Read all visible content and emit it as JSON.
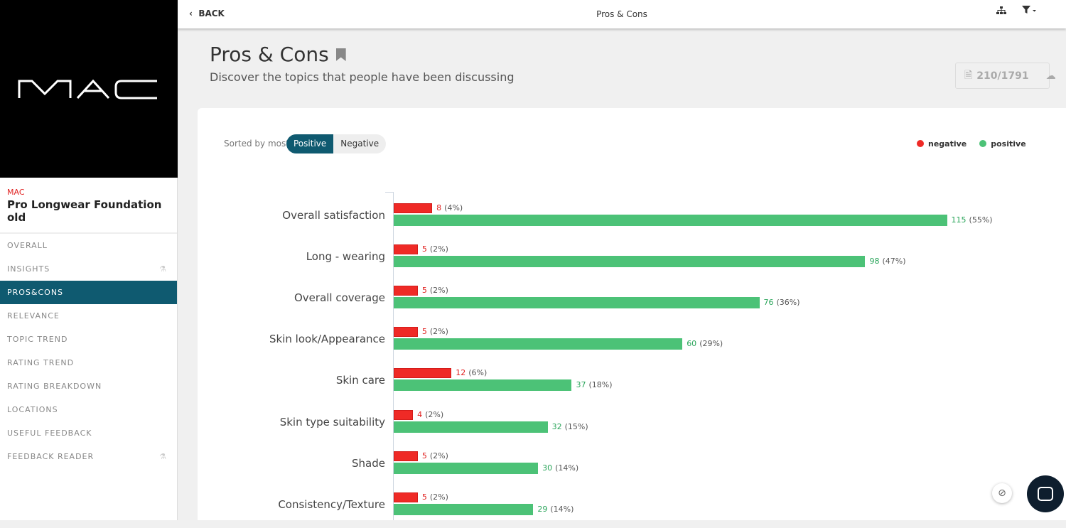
{
  "brand": {
    "logo_text": "MAC",
    "brand_name": "MAC",
    "product": "Pro Longwear Foundation old"
  },
  "sidebar": {
    "items": [
      {
        "label": "OVERALL",
        "active": false,
        "beta": false
      },
      {
        "label": "INSIGHTS",
        "active": false,
        "beta": true
      },
      {
        "label": "PROS&CONS",
        "active": true,
        "beta": false
      },
      {
        "label": "RELEVANCE",
        "active": false,
        "beta": false
      },
      {
        "label": "TOPIC TREND",
        "active": false,
        "beta": false
      },
      {
        "label": "RATING TREND",
        "active": false,
        "beta": false
      },
      {
        "label": "RATING BREAKDOWN",
        "active": false,
        "beta": false
      },
      {
        "label": "LOCATIONS",
        "active": false,
        "beta": false
      },
      {
        "label": "USEFUL FEEDBACK",
        "active": false,
        "beta": false
      },
      {
        "label": "FEEDBACK READER",
        "active": false,
        "beta": true
      }
    ]
  },
  "topbar": {
    "back": "BACK",
    "title": "Pros & Cons",
    "icons": [
      "sitemap-icon",
      "filter-icon"
    ]
  },
  "header": {
    "title": "Pros & Cons",
    "subtitle": "Discover the topics that people have been discussing",
    "count": "210/1791"
  },
  "sort": {
    "label": "Sorted by most",
    "options": [
      "Positive",
      "Negative"
    ],
    "selected": "Positive"
  },
  "colors": {
    "negative": "#ef2a26",
    "positive": "#4cc277",
    "accent": "#0f5a70"
  },
  "chart_data": {
    "type": "bar",
    "orientation": "horizontal",
    "legend": {
      "position": "top-right",
      "entries": [
        "negative",
        "positive"
      ]
    },
    "categories": [
      "Overall satisfaction",
      "Long - wearing",
      "Overall coverage",
      "Skin look/Appearance",
      "Skin care",
      "Skin type suitability",
      "Shade",
      "Consistency/Texture"
    ],
    "series": [
      {
        "name": "negative",
        "values": [
          8,
          5,
          5,
          5,
          12,
          4,
          5,
          5
        ],
        "percents": [
          "(4%)",
          "(2%)",
          "(2%)",
          "(2%)",
          "(6%)",
          "(2%)",
          "(2%)",
          "(2%)"
        ]
      },
      {
        "name": "positive",
        "values": [
          115,
          98,
          76,
          60,
          37,
          32,
          30,
          29
        ],
        "percents": [
          "(55%)",
          "(47%)",
          "(36%)",
          "(29%)",
          "(18%)",
          "(15%)",
          "(14%)",
          "(14%)"
        ]
      }
    ]
  }
}
